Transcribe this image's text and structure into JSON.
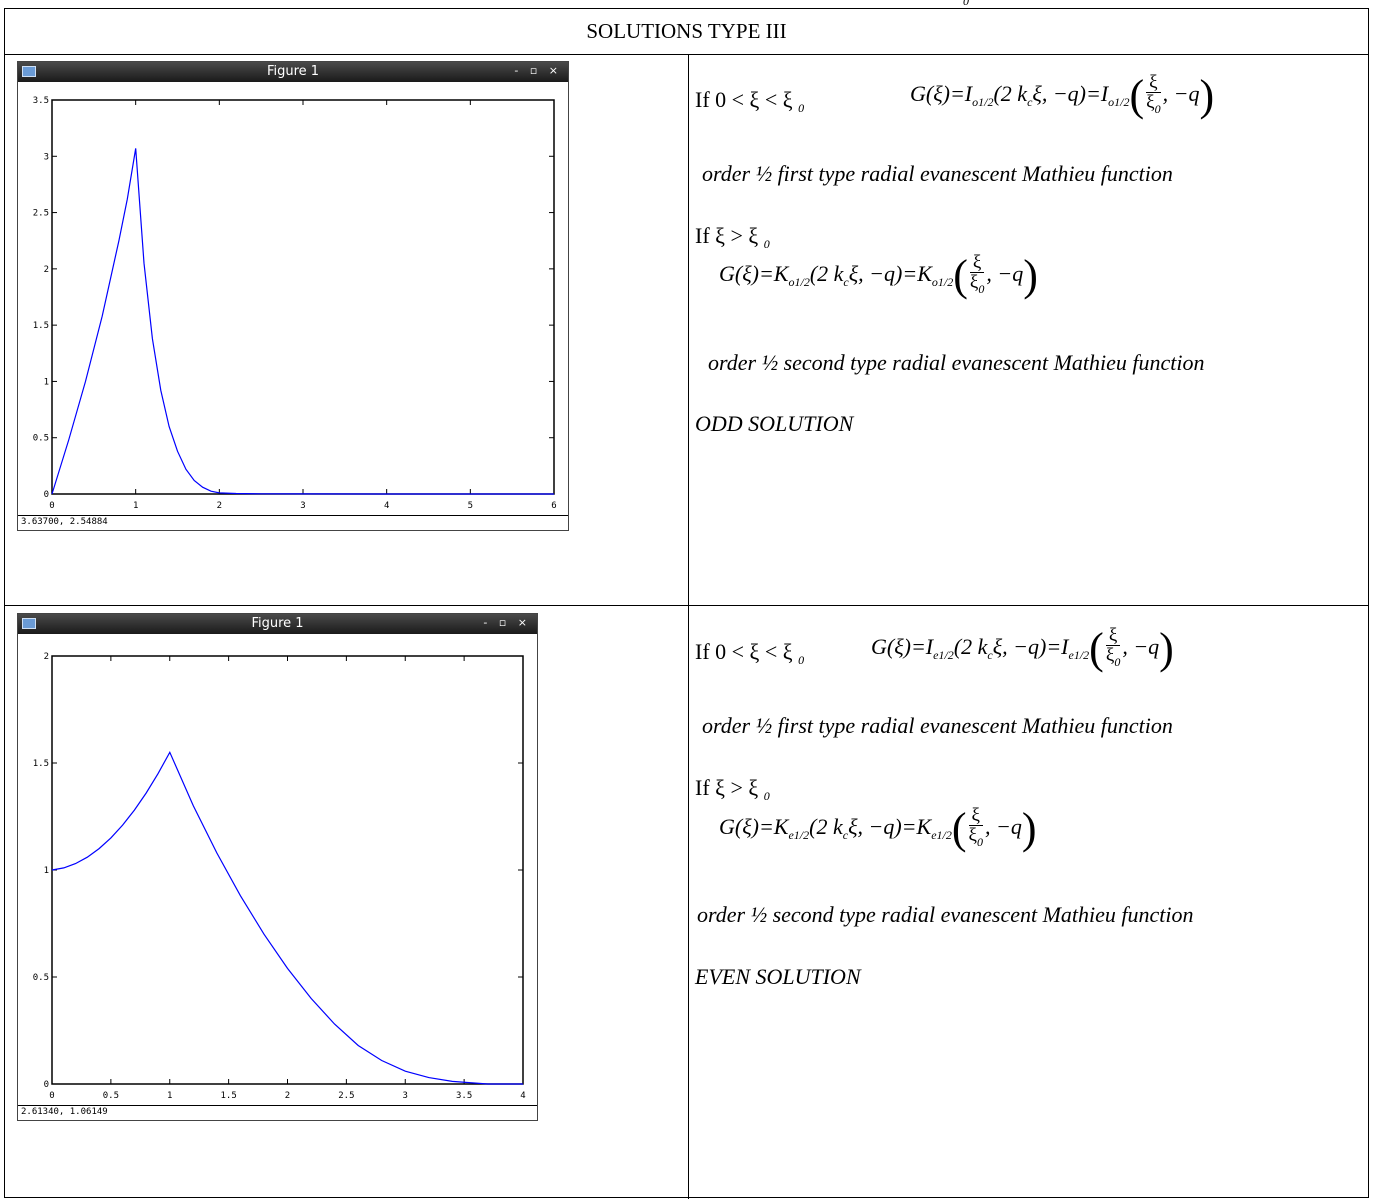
{
  "page": {
    "corner_mark": "0",
    "table_title": "SOLUTIONS TYPE III"
  },
  "figures": [
    {
      "window_title": "Figure 1",
      "window_buttons": "- ▫ ×",
      "status": "3.63700,  2.54884",
      "chart_data": {
        "type": "line",
        "xlim": [
          0,
          6
        ],
        "ylim": [
          0,
          3.5
        ],
        "x_ticks": [
          "0",
          "1",
          "2",
          "3",
          "4",
          "5",
          "6"
        ],
        "y_ticks": [
          "0",
          "0.5",
          "1",
          "1.5",
          "2",
          "2.5",
          "3",
          "3.5"
        ],
        "series": [
          {
            "color": "#0000ff",
            "x": [
              0,
              0.2,
              0.4,
              0.6,
              0.8,
              0.9,
              1.0,
              1.1,
              1.2,
              1.3,
              1.4,
              1.5,
              1.6,
              1.7,
              1.8,
              1.9,
              2.0,
              2.2,
              2.5,
              3,
              4,
              5,
              6
            ],
            "y": [
              0,
              0.48,
              1.0,
              1.58,
              2.25,
              2.62,
              3.07,
              2.05,
              1.38,
              0.92,
              0.6,
              0.38,
              0.22,
              0.12,
              0.06,
              0.025,
              0.01,
              0.004,
              0.002,
              0.001,
              0,
              0,
              0
            ]
          }
        ]
      }
    },
    {
      "window_title": "Figure 1",
      "window_buttons": "- ▫ ×",
      "status": "2.61340,  1.06149",
      "chart_data": {
        "type": "line",
        "xlim": [
          0,
          4
        ],
        "ylim": [
          0,
          2
        ],
        "x_ticks": [
          "0",
          "0.5",
          "1",
          "1.5",
          "2",
          "2.5",
          "3",
          "3.5",
          "4"
        ],
        "y_ticks": [
          "0",
          "0.5",
          "1",
          "1.5",
          "2"
        ],
        "series": [
          {
            "color": "#0000ff",
            "x": [
              0,
              0.1,
              0.2,
              0.3,
              0.4,
              0.5,
              0.6,
              0.7,
              0.8,
              0.9,
              1.0,
              1.2,
              1.4,
              1.6,
              1.8,
              2.0,
              2.2,
              2.4,
              2.6,
              2.8,
              3.0,
              3.2,
              3.4,
              3.6,
              3.7,
              3.8,
              4.0
            ],
            "y": [
              1.0,
              1.01,
              1.03,
              1.06,
              1.1,
              1.15,
              1.21,
              1.28,
              1.36,
              1.45,
              1.55,
              1.3,
              1.08,
              0.88,
              0.7,
              0.54,
              0.4,
              0.28,
              0.18,
              0.11,
              0.06,
              0.03,
              0.012,
              0.004,
              0.0,
              0.0,
              0.0
            ]
          }
        ]
      }
    }
  ],
  "rows": [
    {
      "if_first": "If 0 <  ξ <  ξ ",
      "if_first_sub": "0",
      "g": "G(ξ)=I",
      "sub1": "o1/2",
      "mid": "(2 k",
      "kc_sub": "c",
      "mid2": "ξ, −q)=I",
      "sub2": "o1/2",
      "frac_num": "ξ",
      "frac_den": "ξ",
      "frac_den_sub": "0",
      "tail": ", −q",
      "desc1": "order ½ first type radial evanescent Mathieu function",
      "if_second": "If   ξ >  ξ ",
      "if_second_sub": "0",
      "g2": "G(ξ)=K",
      "sub3": "o1/2",
      "mid3": "(2 k",
      "kc_sub2": "c",
      "mid4": "ξ, −q)=K",
      "sub4": "o1/2",
      "desc2": "order ½ second type radial evanescent Mathieu function",
      "solution": "ODD SOLUTION"
    },
    {
      "if_first": "If 0 <  ξ <  ξ ",
      "if_first_sub": "0",
      "g": "G(ξ)=I",
      "sub1": "e1/2",
      "mid": "(2 k",
      "kc_sub": "c",
      "mid2": "ξ, −q)=I",
      "sub2": "e1/2",
      "frac_num": "ξ",
      "frac_den": "ξ",
      "frac_den_sub": "0",
      "tail": ", −q",
      "desc1": "order ½ first type radial evanescent Mathieu function",
      "if_second": "If   ξ >  ξ ",
      "if_second_sub": "0",
      "g2": "G(ξ)=K",
      "sub3": "e1/2",
      "mid3": "(2 k",
      "kc_sub2": "c",
      "mid4": "ξ, −q)=K",
      "sub4": "e1/2",
      "desc2": "order ½ second type radial evanescent Mathieu function",
      "solution": "EVEN SOLUTION"
    }
  ]
}
